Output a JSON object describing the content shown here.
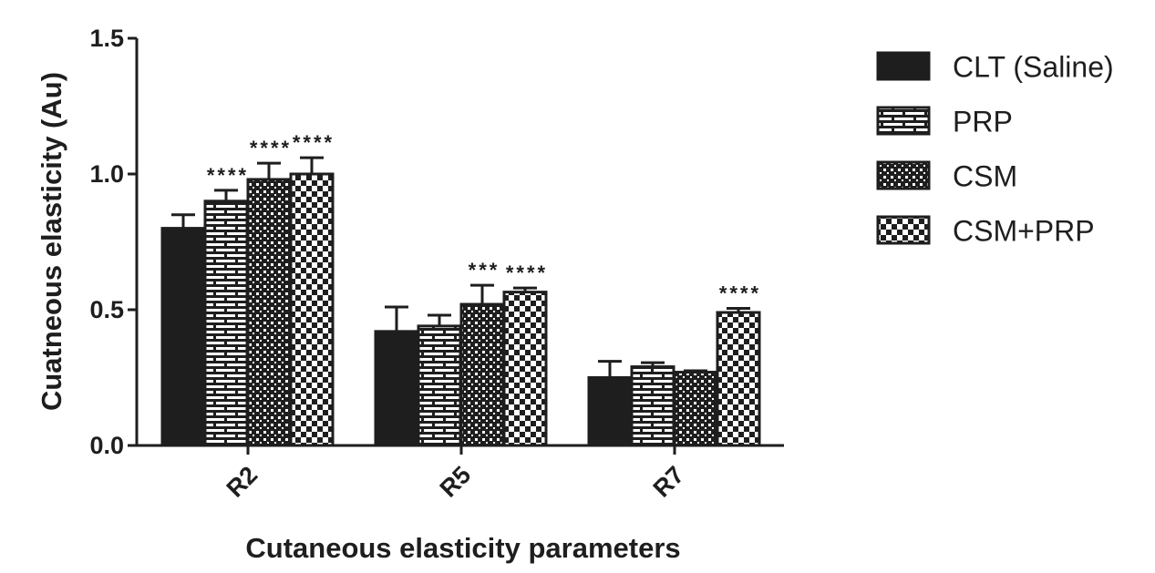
{
  "chart_data": {
    "type": "bar",
    "title": "",
    "xlabel": "Cutaneous elasticity parameters",
    "ylabel": "Cuatneous elasticity (Au)",
    "ylim": [
      0,
      1.5
    ],
    "yticks": [
      "0.0",
      "0.5",
      "1.0",
      "1.5"
    ],
    "categories": [
      "R2",
      "R5",
      "R7"
    ],
    "series": [
      {
        "name": "CLT (Saline)",
        "pattern": "solid",
        "values": [
          0.8,
          0.42,
          0.25
        ],
        "errors": [
          0.05,
          0.09,
          0.06
        ],
        "sig": [
          "",
          "",
          ""
        ]
      },
      {
        "name": "PRP",
        "pattern": "brick",
        "values": [
          0.9,
          0.44,
          0.29
        ],
        "errors": [
          0.04,
          0.04,
          0.015
        ],
        "sig": [
          "****",
          "",
          ""
        ]
      },
      {
        "name": "CSM",
        "pattern": "dots",
        "values": [
          0.98,
          0.52,
          0.27
        ],
        "errors": [
          0.06,
          0.07,
          0.005
        ],
        "sig": [
          "****",
          "***",
          ""
        ]
      },
      {
        "name": "CSM+PRP",
        "pattern": "checker",
        "values": [
          1.0,
          0.565,
          0.49
        ],
        "errors": [
          0.06,
          0.015,
          0.015
        ],
        "sig": [
          "****",
          "****",
          "****"
        ]
      }
    ],
    "legend_position": "right",
    "grid": false,
    "colors": {
      "ink": "#1e1e1e",
      "background": "#ffffff"
    }
  }
}
